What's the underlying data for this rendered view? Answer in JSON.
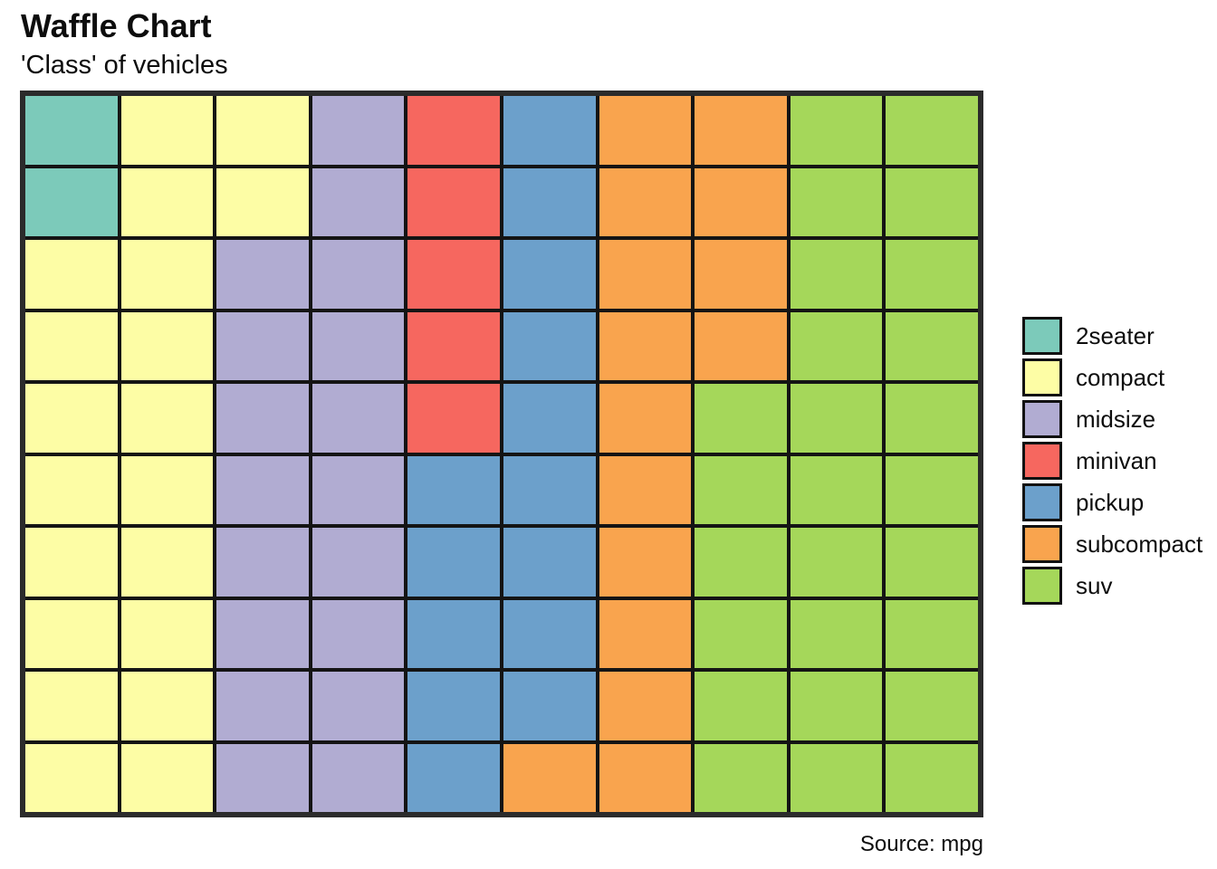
{
  "header": {
    "title": "Waffle Chart",
    "subtitle": "'Class' of vehicles"
  },
  "source_note": "Source: mpg",
  "colors": {
    "grid_line": "#141414",
    "outer_border": "#2b2b2b",
    "background": "#ffffff",
    "text": "#0d0d0d"
  },
  "chart_data": {
    "type": "waffle",
    "title": "Waffle Chart",
    "subtitle": "'Class' of vehicles",
    "source": "Source: mpg",
    "grid": {
      "rows": 10,
      "cols": 10,
      "total_cells": 100,
      "fill_order": "column-major, top-to-bottom within each column, columns left-to-right"
    },
    "categories": [
      {
        "label": "2seater",
        "cells": 2,
        "color": "#7CCABA"
      },
      {
        "label": "compact",
        "cells": 20,
        "color": "#FDFDA5"
      },
      {
        "label": "midsize",
        "cells": 18,
        "color": "#B1ACD2"
      },
      {
        "label": "minivan",
        "cells": 5,
        "color": "#F6675F"
      },
      {
        "label": "pickup",
        "cells": 14,
        "color": "#6CA0CB"
      },
      {
        "label": "subcompact",
        "cells": 15,
        "color": "#F9A44E"
      },
      {
        "label": "suv",
        "cells": 26,
        "color": "#A5D75A"
      }
    ],
    "legend_position": "center-right"
  }
}
